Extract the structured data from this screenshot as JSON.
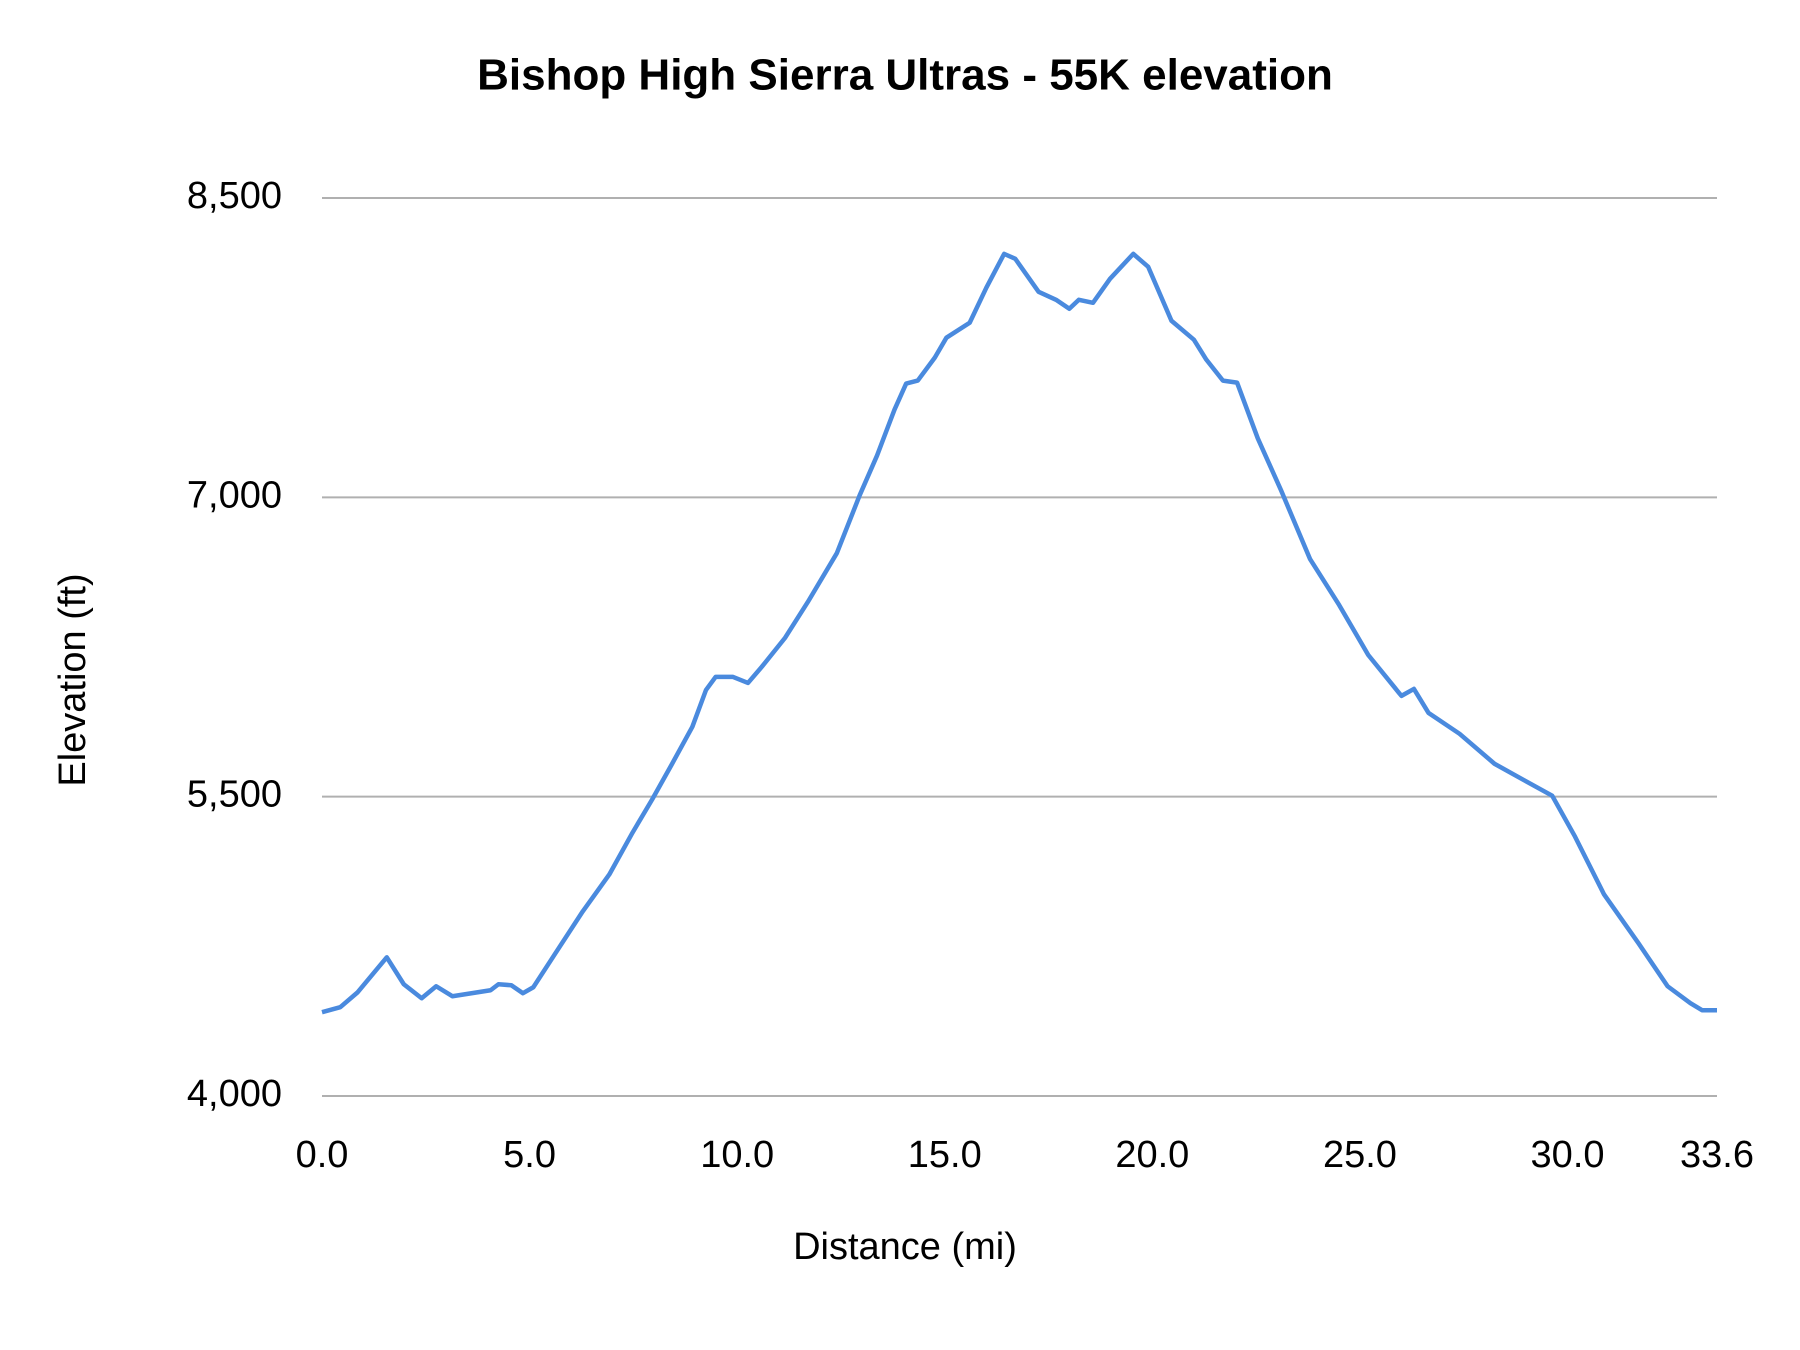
{
  "chart_data": {
    "type": "line",
    "title": "Bishop High Sierra Ultras - 55K elevation",
    "x_label": "Distance (mi)",
    "y_label": "Elevation (ft)",
    "x": [
      0,
      0.44,
      0.86,
      1.56,
      1.97,
      2.4,
      2.75,
      3.14,
      4.06,
      4.25,
      4.56,
      4.84,
      5.09,
      5.59,
      6.28,
      6.92,
      7.48,
      7.95,
      8.42,
      8.92,
      9.25,
      9.48,
      9.9,
      10.26,
      10.59,
      11.15,
      11.7,
      12.4,
      12.95,
      13.37,
      13.79,
      14.07,
      14.35,
      14.76,
      15.04,
      15.6,
      16.0,
      16.43,
      16.7,
      17.26,
      17.68,
      18.0,
      18.23,
      18.57,
      18.98,
      19.54,
      19.9,
      20.46,
      21.0,
      21.3,
      21.7,
      22.04,
      22.54,
      23.1,
      23.8,
      24.5,
      25.2,
      26.0,
      26.3,
      26.65,
      27.4,
      28.24,
      28.93,
      29.63,
      30.18,
      30.88,
      31.71,
      32.41,
      32.96,
      33.24,
      33.6
    ],
    "series": [
      {
        "name": "Elevation",
        "color": "#4a8ade",
        "values": [
          4420,
          4445,
          4520,
          4695,
          4560,
          4490,
          4550,
          4500,
          4530,
          4560,
          4555,
          4515,
          4545,
          4705,
          4925,
          5110,
          5320,
          5485,
          5660,
          5850,
          6035,
          6100,
          6100,
          6070,
          6150,
          6295,
          6475,
          6720,
          7010,
          7210,
          7440,
          7570,
          7585,
          7700,
          7800,
          7875,
          8050,
          8220,
          8195,
          8030,
          7990,
          7945,
          7990,
          7975,
          8095,
          8220,
          8155,
          7885,
          7790,
          7690,
          7585,
          7575,
          7295,
          7035,
          6690,
          6460,
          6210,
          6005,
          6040,
          5920,
          5815,
          5665,
          5585,
          5505,
          5300,
          5010,
          4765,
          4550,
          4465,
          4430,
          4430
        ]
      }
    ],
    "xlim": [
      0,
      33.6
    ],
    "ylim": [
      4000,
      8500
    ],
    "xticks": [
      {
        "value": 0,
        "label": "0.0"
      },
      {
        "value": 5,
        "label": "5.0"
      },
      {
        "value": 10,
        "label": "10.0"
      },
      {
        "value": 15,
        "label": "15.0"
      },
      {
        "value": 20,
        "label": "20.0"
      },
      {
        "value": 25,
        "label": "25.0"
      },
      {
        "value": 30,
        "label": "30.0"
      },
      33.6
    ],
    "yticks": [
      {
        "value": 4000,
        "label": "4,000"
      },
      {
        "value": 5500,
        "label": "5,500"
      },
      {
        "value": 7000,
        "label": "7,000"
      },
      {
        "value": 8500,
        "label": "8,500"
      }
    ],
    "grid": true
  }
}
